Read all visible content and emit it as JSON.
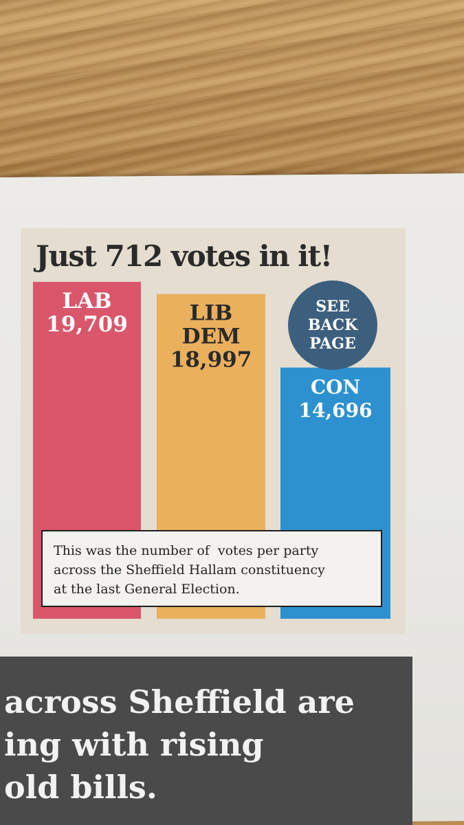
{
  "chart_data": {
    "type": "bar",
    "title": "Just 712 votes in it!",
    "categories": [
      "LAB",
      "LIB DEM",
      "CON"
    ],
    "values": [
      19709,
      18997,
      14696
    ],
    "value_labels": [
      "19,709",
      "18,997",
      "14,696"
    ],
    "label_lines": [
      [
        "LAB"
      ],
      [
        "LIB",
        "DEM"
      ],
      [
        "CON"
      ]
    ],
    "colors": [
      "#d9566b",
      "#eab05c",
      "#2e91cf"
    ],
    "label_colors": [
      "#ffffff",
      "#2a2a2a",
      "#ffffff"
    ],
    "grid": false,
    "legend": "none"
  },
  "badge": {
    "lines": [
      "SEE",
      "BACK",
      "PAGE"
    ],
    "color": "#3d5f7e"
  },
  "note": {
    "lines": [
      "This was the number of  votes per party",
      "across the Sheffield Hallam constituency",
      "at the last General Election."
    ]
  },
  "headline": {
    "lines": [
      "across Sheffield are",
      "ing with rising",
      "old bills."
    ]
  }
}
